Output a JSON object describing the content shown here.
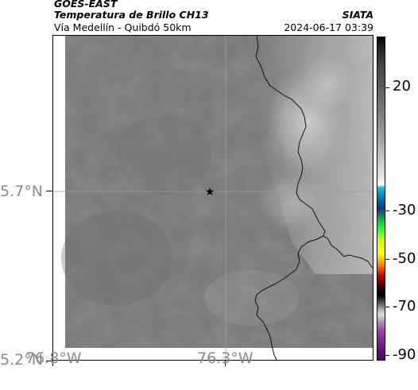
{
  "header": {
    "satellite": "GOES-EAST",
    "product": "Temperatura de Brillo CH13",
    "region": "Vía Medellín - Quibdó 50km",
    "brand": "SIATA",
    "datetime": "2024-06-17 03:39"
  },
  "map": {
    "lat_labels": [
      "5.7°N",
      "5.2°N"
    ],
    "lon_labels": [
      "76.8°W",
      "76.3°W"
    ],
    "gridlines": true,
    "marker": "star-icon",
    "background_color": "#7a7a7a",
    "border_color": "#000000"
  },
  "colorbar": {
    "tick_labels": [
      "20",
      "-30",
      "-50",
      "-70",
      "-90"
    ],
    "placement": "right"
  }
}
